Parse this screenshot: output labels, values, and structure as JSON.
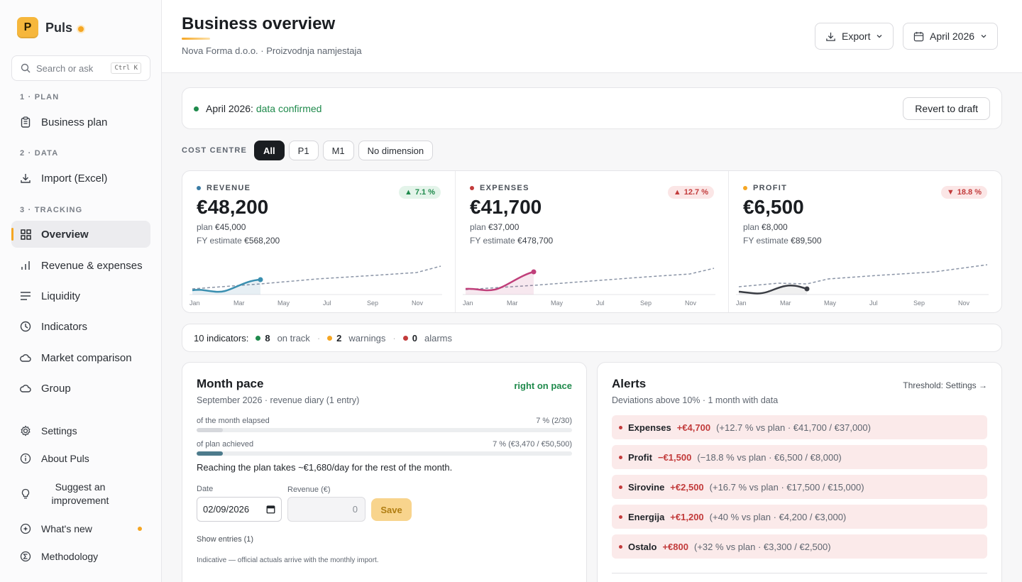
{
  "brand": {
    "logo_letter": "P",
    "name": "Puls"
  },
  "search": {
    "placeholder": "Search or ask",
    "shortcut": "Ctrl K"
  },
  "sidebar": {
    "sections": [
      "1 · PLAN",
      "2 · DATA",
      "3 · TRACKING"
    ],
    "items": [
      {
        "label": "Business plan",
        "icon": "clipboard-icon"
      },
      {
        "label": "Import (Excel)",
        "icon": "download-icon"
      },
      {
        "label": "Overview",
        "icon": "grid-icon",
        "active": true
      },
      {
        "label": "Revenue & expenses",
        "icon": "bar-chart-icon"
      },
      {
        "label": "Liquidity",
        "icon": "lines-icon"
      },
      {
        "label": "Indicators",
        "icon": "clock-icon"
      },
      {
        "label": "Market comparison",
        "icon": "cloud-icon"
      },
      {
        "label": "Group",
        "icon": "cloud-icon"
      }
    ],
    "footer": [
      {
        "label": "Settings",
        "icon": "gear-icon"
      },
      {
        "label": "About Puls",
        "icon": "info-icon"
      },
      {
        "label": "Suggest an improvement",
        "icon": "lightbulb-icon"
      },
      {
        "label": "What's new",
        "icon": "sparkle-icon"
      },
      {
        "label": "Methodology",
        "icon": "sigma-icon"
      }
    ]
  },
  "header": {
    "title": "Business overview",
    "subtitle": "Nova Forma d.o.o. · Proizvodnja namjestaja",
    "export_label": "Export",
    "period_label": "April 2026"
  },
  "confirm": {
    "period": "April 2026:",
    "status": "data confirmed",
    "revert_label": "Revert to draft"
  },
  "filters": {
    "label": "COST CENTRE",
    "chips": [
      "All",
      "P1",
      "M1",
      "No dimension"
    ],
    "active": "All"
  },
  "kpis": [
    {
      "label": "REVENUE",
      "color": "#3a7ca5",
      "badge": "7.1 %",
      "badge_dir": "up",
      "value": "€48,200",
      "plan_label": "plan",
      "plan": "€45,000",
      "fy_label": "FY estimate",
      "fy": "€568,200"
    },
    {
      "label": "EXPENSES",
      "color": "#c23b3b",
      "badge": "12.7 %",
      "badge_dir": "up",
      "value": "€41,700",
      "plan_label": "plan",
      "plan": "€37,000",
      "fy_label": "FY estimate",
      "fy": "€478,700"
    },
    {
      "label": "PROFIT",
      "color": "#f5a623",
      "badge": "18.8 %",
      "badge_dir": "down",
      "value": "€6,500",
      "plan_label": "plan",
      "plan": "€8,000",
      "fy_label": "FY estimate",
      "fy": "€89,500"
    }
  ],
  "spark_months": [
    "Jan",
    "Mar",
    "May",
    "Jul",
    "Sep",
    "Nov"
  ],
  "indicators": {
    "lead": "10 indicators:",
    "on_track": "8",
    "on_track_label": "on track",
    "warnings": "2",
    "warnings_label": "warnings",
    "alarms": "0",
    "alarms_label": "alarms"
  },
  "pace": {
    "title": "Month pace",
    "subtitle": "September 2026 · revenue diary (1 entry)",
    "status": "right on pace",
    "elapsed_label": "of the month elapsed",
    "elapsed_value": "7 % (2/30)",
    "elapsed_fraction": 0.07,
    "achieved_label": "of plan achieved",
    "achieved_value": "7 % (€3,470 / €50,500)",
    "achieved_fraction": 0.07,
    "note": "Reaching the plan takes ~€1,680/day for the rest of the month.",
    "date_label": "Date",
    "date_value": "02/09/2026",
    "revenue_label": "Revenue (€)",
    "revenue_placeholder": "0",
    "save_label": "Save",
    "show_entries": "Show entries (1)",
    "indicative": "Indicative — official actuals arrive with the monthly import."
  },
  "alerts": {
    "title": "Alerts",
    "subtitle": "Deviations above 10% · 1 month with data",
    "threshold": "Threshold: Settings →",
    "items": [
      {
        "name": "Expenses",
        "delta": "+€4,700",
        "detail": "(+12.7 % vs plan · €41,700 / €37,000)"
      },
      {
        "name": "Profit",
        "delta": "−€1,500",
        "detail": "(−18.8 % vs plan · €6,500 / €8,000)"
      },
      {
        "name": "Sirovine",
        "delta": "+€2,500",
        "detail": "(+16.7 % vs plan · €17,500 / €15,000)"
      },
      {
        "name": "Energija",
        "delta": "+€1,200",
        "detail": "(+40 % vs plan · €4,200 / €3,000)"
      },
      {
        "name": "Ostalo",
        "delta": "+€800",
        "detail": "(+32 % vs plan · €3,300 / €2,500)"
      }
    ]
  }
}
